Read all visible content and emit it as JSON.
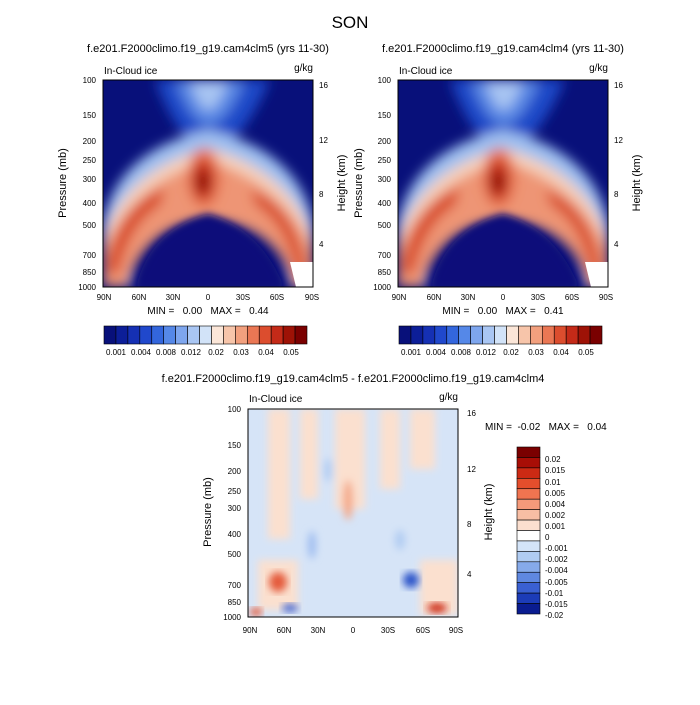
{
  "figure_title": "SON",
  "chart_data": [
    {
      "type": "heatmap",
      "title": "f.e201.F2000climo.f19_g19.cam4clm5 (yrs 11-30)",
      "left_label": "In-Cloud ice",
      "units": "g/kg",
      "ylabel": "Pressure (mb)",
      "ylabel_right": "Height (km)",
      "xticks": [
        "90N",
        "60N",
        "30N",
        "0",
        "30S",
        "60S",
        "90S"
      ],
      "yticks": [
        "100",
        "150",
        "200",
        "250",
        "300",
        "400",
        "500",
        "700",
        "850",
        "1000"
      ],
      "height_ticks": [
        "16",
        "12",
        "8",
        "4"
      ],
      "stats": "MIN =   0.00   MAX =   0.44",
      "min": 0.0,
      "max": 0.44,
      "colorbar_labels": [
        "0.001",
        "0.004",
        "0.008",
        "0.012",
        "0.02",
        "0.03",
        "0.04",
        "0.05"
      ]
    },
    {
      "type": "heatmap",
      "title": "f.e201.F2000climo.f19_g19.cam4clm4 (yrs 11-30)",
      "left_label": "In-Cloud ice",
      "units": "g/kg",
      "ylabel": "Pressure (mb)",
      "ylabel_right": "Height (km)",
      "xticks": [
        "90N",
        "60N",
        "30N",
        "0",
        "30S",
        "60S",
        "90S"
      ],
      "yticks": [
        "100",
        "150",
        "200",
        "250",
        "300",
        "400",
        "500",
        "700",
        "850",
        "1000"
      ],
      "height_ticks": [
        "16",
        "12",
        "8",
        "4"
      ],
      "stats": "MIN =   0.00   MAX =   0.41",
      "min": 0.0,
      "max": 0.41,
      "colorbar_labels": [
        "0.001",
        "0.004",
        "0.008",
        "0.012",
        "0.02",
        "0.03",
        "0.04",
        "0.05"
      ]
    },
    {
      "type": "heatmap",
      "title": "f.e201.F2000climo.f19_g19.cam4clm5 - f.e201.F2000climo.f19_g19.cam4clm4",
      "left_label": "In-Cloud ice",
      "units": "g/kg",
      "ylabel": "Pressure (mb)",
      "ylabel_right": "Height (km)",
      "xticks": [
        "90N",
        "60N",
        "30N",
        "0",
        "30S",
        "60S",
        "90S"
      ],
      "yticks": [
        "100",
        "150",
        "200",
        "250",
        "300",
        "400",
        "500",
        "700",
        "850",
        "1000"
      ],
      "height_ticks": [
        "16",
        "12",
        "8",
        "4"
      ],
      "stats": "MIN =  -0.02   MAX =   0.04",
      "min": -0.02,
      "max": 0.04,
      "colorbar_labels": [
        "0.02",
        "0.015",
        "0.01",
        "0.005",
        "0.004",
        "0.002",
        "0.001",
        "0",
        "-0.001",
        "-0.002",
        "-0.004",
        "-0.005",
        "-0.01",
        "-0.015",
        "-0.02"
      ]
    }
  ],
  "colors": {
    "seq_scale": [
      "#08107a",
      "#0c1e98",
      "#1530b4",
      "#2048cc",
      "#3366dd",
      "#5588e8",
      "#7ea6ee",
      "#a9c6f3",
      "#d2e3f8",
      "#fbe6d8",
      "#f7c5aa",
      "#f2a07e",
      "#ea7754",
      "#dc4d2e",
      "#c42a18",
      "#9e1206",
      "#7a0000"
    ],
    "diff_scale": [
      "#7a0000",
      "#a80e06",
      "#cc2a14",
      "#e44e2c",
      "#f07450",
      "#f59a7a",
      "#f8bea4",
      "#fbdfcf",
      "#ffffff",
      "#d4e4f8",
      "#b0ccf2",
      "#86aaea",
      "#5f88e0",
      "#3a60d2",
      "#1c3cb8",
      "#0a1c90"
    ]
  }
}
